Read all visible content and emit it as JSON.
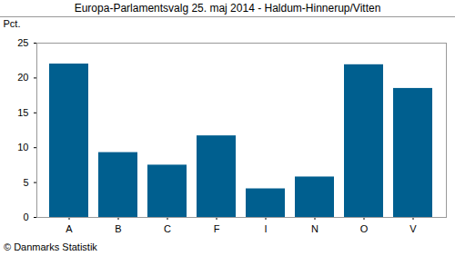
{
  "chart_data": {
    "type": "bar",
    "title": "Europa-Parlamentsvalg 25. maj 2014 - Haldum-Hinnerup/Vitten",
    "y_label": "Pct.",
    "caption": "© Danmarks Statistik",
    "categories": [
      "A",
      "B",
      "C",
      "F",
      "I",
      "N",
      "O",
      "V"
    ],
    "values": [
      22.0,
      9.3,
      7.5,
      11.7,
      4.1,
      5.8,
      21.9,
      18.5
    ],
    "color": "#005f8f",
    "ylim": [
      0,
      25
    ],
    "yticks": [
      0,
      5,
      10,
      15,
      20,
      25
    ],
    "grid": false
  }
}
